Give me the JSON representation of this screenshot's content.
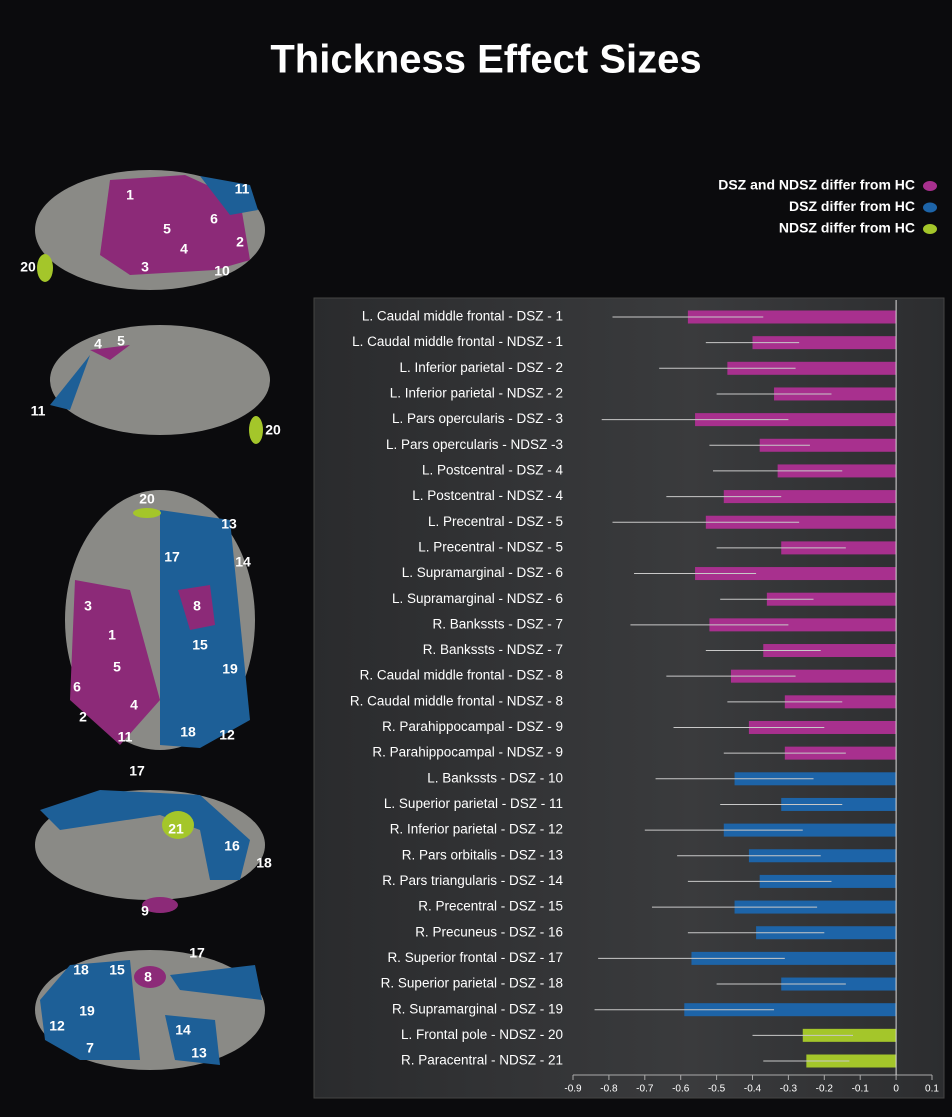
{
  "chart_data": {
    "type": "hbar-error",
    "title": "Thickness Effect Sizes",
    "categories": [
      "L. Caudal middle frontal - DSZ - 1",
      "L. Caudal middle frontal - NDSZ - 1",
      "L. Inferior parietal - DSZ - 2",
      "L. Inferior parietal - NDSZ - 2",
      "L. Pars opercularis - DSZ - 3",
      "L. Pars opercularis - NDSZ -3",
      "L. Postcentral - DSZ - 4",
      "L. Postcentral - NDSZ - 4",
      "L. Precentral - DSZ - 5",
      "L. Precentral - NDSZ - 5",
      "L. Supramarginal - DSZ - 6",
      "L. Supramarginal - NDSZ - 6",
      "R. Bankssts - DSZ - 7",
      "R. Bankssts - NDSZ - 7",
      "R. Caudal middle frontal - DSZ - 8",
      "R. Caudal middle frontal - NDSZ - 8",
      "R. Parahippocampal - DSZ - 9",
      "R. Parahippocampal - NDSZ - 9",
      "L. Bankssts - DSZ - 10",
      "L. Superior parietal - DSZ - 11",
      "R. Inferior parietal - DSZ - 12",
      "R. Pars orbitalis - DSZ - 13",
      "R. Pars triangularis - DSZ - 14",
      "R. Precentral - DSZ - 15",
      "R. Precuneus - DSZ - 16",
      "R. Superior frontal - DSZ - 17",
      "R. Superior parietal - DSZ - 18",
      "R. Supramarginal - DSZ - 19",
      "L. Frontal pole - NDSZ - 20",
      "R. Paracentral - NDSZ - 21"
    ],
    "series": [
      {
        "name": "DSZ and NDSZ differ from HC",
        "color": "#a8308e",
        "values": [
          -0.58,
          -0.4,
          -0.47,
          -0.34,
          -0.56,
          -0.38,
          -0.33,
          -0.48,
          -0.53,
          -0.32,
          -0.56,
          -0.36,
          -0.52,
          -0.37,
          -0.46,
          -0.31,
          -0.41,
          -0.31,
          null,
          null,
          null,
          null,
          null,
          null,
          null,
          null,
          null,
          null,
          null,
          null
        ],
        "errors": [
          0.21,
          0.13,
          0.19,
          0.16,
          0.26,
          0.14,
          0.18,
          0.16,
          0.26,
          0.18,
          0.17,
          0.13,
          0.22,
          0.16,
          0.18,
          0.16,
          0.21,
          0.17,
          null,
          null,
          null,
          null,
          null,
          null,
          null,
          null,
          null,
          null,
          null,
          null
        ]
      },
      {
        "name": "DSZ differ from HC",
        "color": "#1d64a8",
        "values": [
          null,
          null,
          null,
          null,
          null,
          null,
          null,
          null,
          null,
          null,
          null,
          null,
          null,
          null,
          null,
          null,
          null,
          null,
          -0.45,
          -0.32,
          -0.48,
          -0.41,
          -0.38,
          -0.45,
          -0.39,
          -0.57,
          -0.32,
          -0.59,
          null,
          null
        ],
        "errors": [
          null,
          null,
          null,
          null,
          null,
          null,
          null,
          null,
          null,
          null,
          null,
          null,
          null,
          null,
          null,
          null,
          null,
          null,
          0.22,
          0.17,
          0.22,
          0.2,
          0.2,
          0.23,
          0.19,
          0.26,
          0.18,
          0.25,
          null,
          null
        ]
      },
      {
        "name": "NDSZ differ from HC",
        "color": "#a4c62a",
        "values": [
          null,
          null,
          null,
          null,
          null,
          null,
          null,
          null,
          null,
          null,
          null,
          null,
          null,
          null,
          null,
          null,
          null,
          null,
          null,
          null,
          null,
          null,
          null,
          null,
          null,
          null,
          null,
          null,
          -0.26,
          -0.25
        ],
        "errors": [
          null,
          null,
          null,
          null,
          null,
          null,
          null,
          null,
          null,
          null,
          null,
          null,
          null,
          null,
          null,
          null,
          null,
          null,
          null,
          null,
          null,
          null,
          null,
          null,
          null,
          null,
          null,
          null,
          0.14,
          0.12
        ]
      }
    ],
    "xlim": [
      -0.9,
      0.1
    ],
    "xticks": [
      -0.9,
      -0.8,
      -0.7,
      -0.6,
      -0.5,
      -0.4,
      -0.3,
      -0.2,
      -0.1,
      0,
      0.1
    ],
    "grid": false,
    "legend": "top-right"
  },
  "brain_views": [
    {
      "labels": [
        "1",
        "11",
        "6",
        "5",
        "4",
        "2",
        "3",
        "10",
        "20"
      ]
    },
    {
      "labels": [
        "4",
        "5",
        "11",
        "20"
      ]
    },
    {
      "labels": [
        "20",
        "13",
        "14",
        "17",
        "8",
        "3",
        "1",
        "15",
        "19",
        "5",
        "6",
        "4",
        "2",
        "11",
        "18",
        "12"
      ]
    },
    {
      "labels": [
        "17",
        "21",
        "16",
        "18",
        "9"
      ]
    },
    {
      "labels": [
        "17",
        "18",
        "15",
        "8",
        "19",
        "12",
        "14",
        "7",
        "13"
      ]
    }
  ]
}
